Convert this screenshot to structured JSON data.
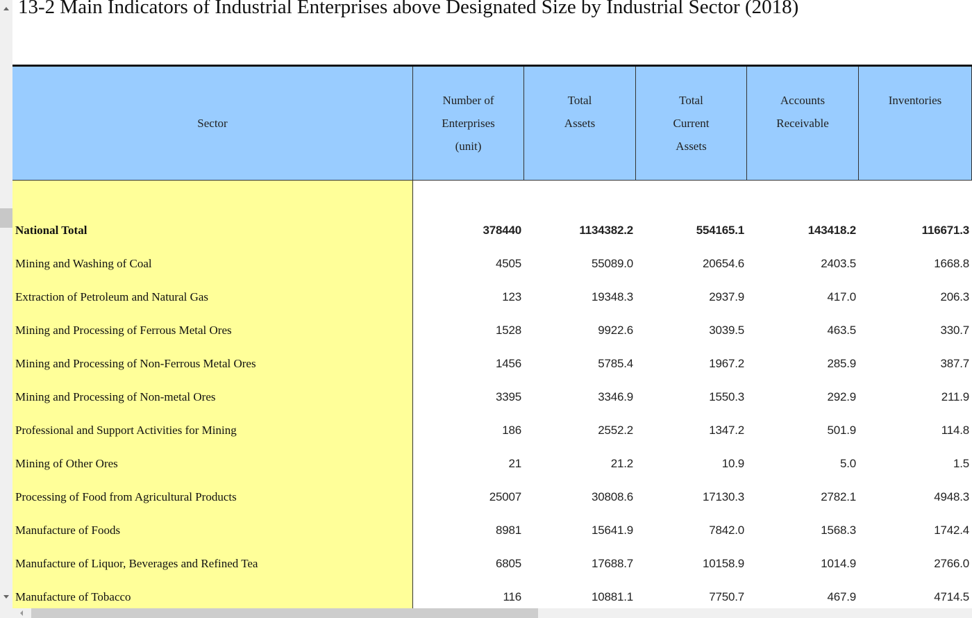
{
  "title": "13-2  Main Indicators of Industrial Enterprises above Designated Size by Industrial Sector (2018)",
  "table": {
    "headers": [
      [
        "Sector"
      ],
      [
        "Number of",
        "Enterprises",
        "(unit)"
      ],
      [
        "Total",
        "Assets"
      ],
      [
        "Total",
        "Current",
        "Assets"
      ],
      [
        "Accounts",
        "Receivable"
      ],
      [
        "Inventories"
      ]
    ],
    "rows": [
      [
        "National Total",
        "378440",
        "1134382.2",
        "554165.1",
        "143418.2",
        "116671.3"
      ],
      [
        "Mining and Washing of Coal",
        "4505",
        "55089.0",
        "20654.6",
        "2403.5",
        "1668.8"
      ],
      [
        "Extraction of Petroleum and Natural Gas",
        "123",
        "19348.3",
        "2937.9",
        "417.0",
        "206.3"
      ],
      [
        "Mining and Processing of Ferrous Metal Ores",
        "1528",
        "9922.6",
        "3039.5",
        "463.5",
        "330.7"
      ],
      [
        "Mining and Processing of Non-Ferrous Metal Ores",
        "1456",
        "5785.4",
        "1967.2",
        "285.9",
        "387.7"
      ],
      [
        "Mining and Processing of Non-metal Ores",
        "3395",
        "3346.9",
        "1550.3",
        "292.9",
        "211.9"
      ],
      [
        "Professional and Support Activities for Mining",
        "186",
        "2552.2",
        "1347.2",
        "501.9",
        "114.8"
      ],
      [
        "Mining of Other Ores",
        "21",
        "21.2",
        "10.9",
        "5.0",
        "1.5"
      ],
      [
        "Processing of Food from Agricultural Products",
        "25007",
        "30808.6",
        "17130.3",
        "2782.1",
        "4948.3"
      ],
      [
        "Manufacture of Foods",
        "8981",
        "15641.9",
        "7842.0",
        "1568.3",
        "1742.4"
      ],
      [
        "Manufacture of Liquor, Beverages and Refined Tea",
        "6805",
        "17688.7",
        "10158.9",
        "1014.9",
        "2766.0"
      ],
      [
        "Manufacture of Tobacco",
        "116",
        "10881.1",
        "7750.7",
        "467.9",
        "4714.5"
      ]
    ]
  }
}
